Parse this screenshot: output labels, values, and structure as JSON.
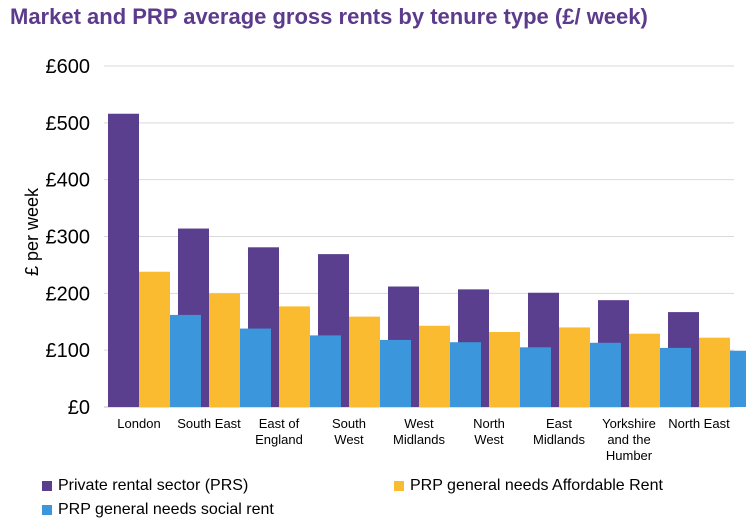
{
  "chart_data": {
    "type": "bar",
    "title": "Market and PRP average gross rents by tenure type (£/ week)",
    "xlabel": "",
    "ylabel": "£ per week",
    "ylim": [
      0,
      600
    ],
    "yticks": [
      0,
      100,
      200,
      300,
      400,
      500,
      600
    ],
    "ytick_labels": [
      "£0",
      "£100",
      "£200",
      "£300",
      "£400",
      "£500",
      "£600"
    ],
    "grid": true,
    "legend_position": "bottom",
    "categories": [
      [
        "London"
      ],
      [
        "South East"
      ],
      [
        "East of",
        "England"
      ],
      [
        "South",
        "West"
      ],
      [
        "West",
        "Midlands"
      ],
      [
        "North",
        "West"
      ],
      [
        "East",
        "Midlands"
      ],
      [
        "Yorkshire",
        "and the",
        "Humber"
      ],
      [
        "North East"
      ]
    ],
    "series": [
      {
        "name": "Private rental sector (PRS)",
        "color": "#5b3f8f",
        "values": [
          516,
          314,
          281,
          269,
          212,
          207,
          201,
          188,
          167
        ]
      },
      {
        "name": "PRP general needs Affordable Rent",
        "color": "#fbbb30",
        "values": [
          238,
          200,
          177,
          159,
          143,
          132,
          140,
          129,
          122
        ]
      },
      {
        "name": "PRP general needs social rent",
        "color": "#3c96dc",
        "values": [
          162,
          138,
          126,
          118,
          114,
          105,
          113,
          104,
          99
        ]
      }
    ]
  }
}
